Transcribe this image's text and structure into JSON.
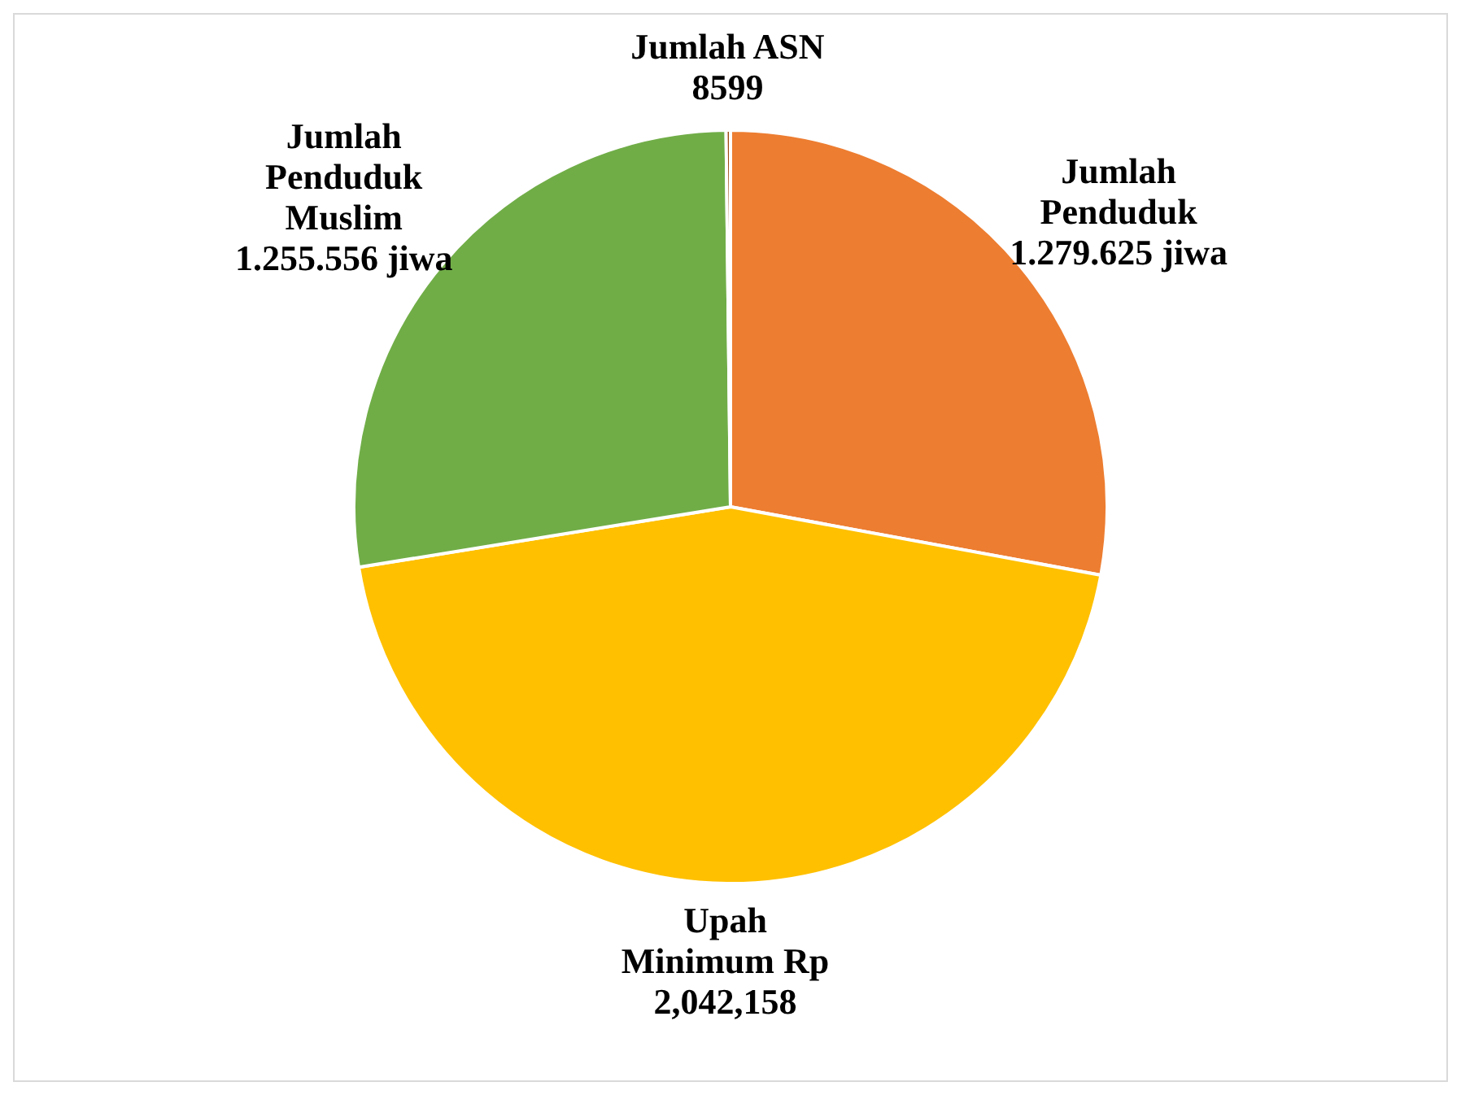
{
  "chart_data": {
    "type": "pie",
    "categories": [
      "Jumlah Penduduk",
      "Upah Minimum Rp",
      "Jumlah Penduduk Muslim",
      "Jumlah ASN"
    ],
    "values": [
      1279625,
      2042158,
      1255556,
      8599
    ],
    "value_labels": [
      "1.279.625 jiwa",
      "2,042,158",
      "1.255.556 jiwa",
      "8599"
    ],
    "colors": [
      "#ed7d31",
      "#ffc000",
      "#70ad47",
      "#9e480e"
    ],
    "legend": false
  }
}
